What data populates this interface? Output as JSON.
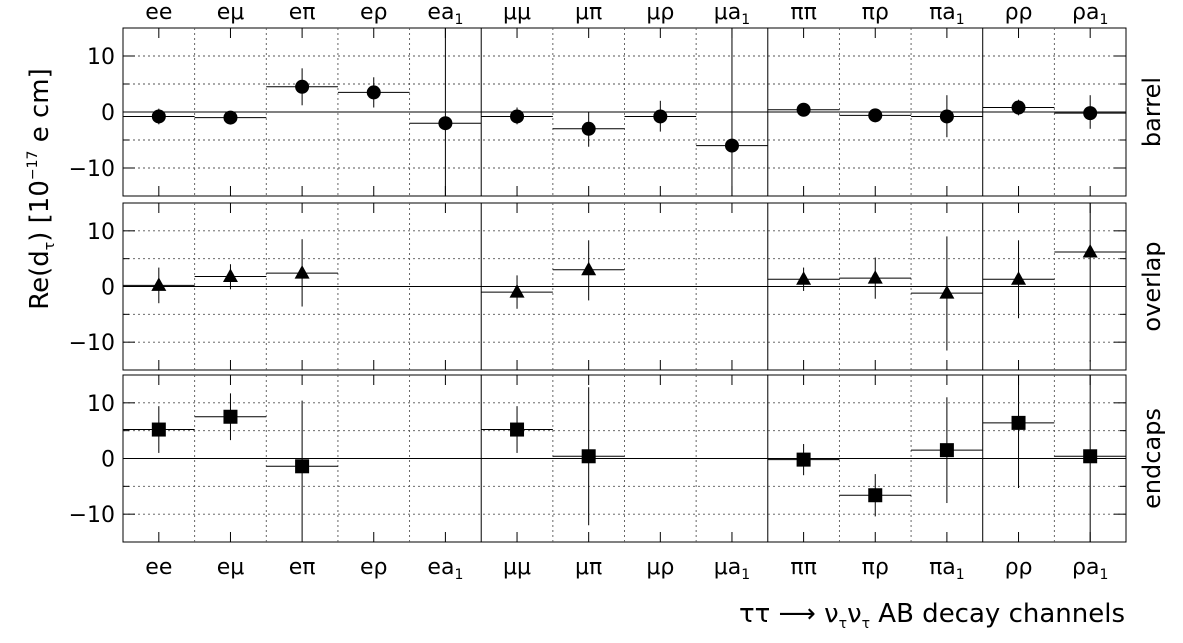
{
  "chart_data": {
    "type": "scatter",
    "ylabel_main": "Re(d",
    "ylabel_sub": "τ",
    "ylabel_units": ")  [10",
    "ylabel_exp": "−17",
    "ylabel_tail": " e cm]",
    "xtitle_main": "ττ ⟶ ν",
    "xtitle_sub1": "τ",
    "xtitle_mid": "ν",
    "xtitle_sub2": "τ",
    "xtitle_tail": " AB  decay channels",
    "ylim": [
      -15,
      15
    ],
    "yticks": [
      -10,
      0,
      10
    ],
    "ytick_labels": [
      "−10",
      "0",
      "10"
    ],
    "minor_step": 5,
    "group_boundaries_after": [
      4,
      8,
      11
    ],
    "categories": [
      {
        "main": "ee",
        "sub": ""
      },
      {
        "main": "eμ",
        "sub": ""
      },
      {
        "main": "eπ",
        "sub": ""
      },
      {
        "main": "eρ",
        "sub": ""
      },
      {
        "main": "ea",
        "sub": "1"
      },
      {
        "main": "μμ",
        "sub": ""
      },
      {
        "main": "μπ",
        "sub": ""
      },
      {
        "main": "μρ",
        "sub": ""
      },
      {
        "main": "μa",
        "sub": "1"
      },
      {
        "main": "ππ",
        "sub": ""
      },
      {
        "main": "πρ",
        "sub": ""
      },
      {
        "main": "πa",
        "sub": "1"
      },
      {
        "main": "ρρ",
        "sub": ""
      },
      {
        "main": "ρa",
        "sub": "1"
      }
    ],
    "panels": [
      {
        "name": "barrel",
        "marker": "circle",
        "points": [
          {
            "i": 0,
            "y": -0.8,
            "lo": -2.2,
            "hi": 0.6
          },
          {
            "i": 1,
            "y": -1.0,
            "lo": -2.0,
            "hi": 0.0
          },
          {
            "i": 2,
            "y": 4.5,
            "lo": 1.2,
            "hi": 7.8
          },
          {
            "i": 3,
            "y": 3.5,
            "lo": 0.8,
            "hi": 6.2
          },
          {
            "i": 4,
            "y": -2.0,
            "lo": -15.0,
            "hi": 15.0
          },
          {
            "i": 5,
            "y": -0.8,
            "lo": -2.2,
            "hi": 0.8
          },
          {
            "i": 6,
            "y": -3.0,
            "lo": -6.2,
            "hi": 0.0
          },
          {
            "i": 7,
            "y": -0.8,
            "lo": -3.5,
            "hi": 2.0
          },
          {
            "i": 8,
            "y": -6.0,
            "lo": -15.0,
            "hi": 15.0
          },
          {
            "i": 9,
            "y": 0.4,
            "lo": -0.8,
            "hi": 1.6
          },
          {
            "i": 10,
            "y": -0.6,
            "lo": -1.8,
            "hi": 0.6
          },
          {
            "i": 11,
            "y": -0.8,
            "lo": -4.5,
            "hi": 3.0
          },
          {
            "i": 12,
            "y": 0.8,
            "lo": -0.6,
            "hi": 2.2
          },
          {
            "i": 13,
            "y": -0.2,
            "lo": -3.0,
            "hi": 3.0
          }
        ]
      },
      {
        "name": "overlap",
        "marker": "triangle",
        "points": [
          {
            "i": 0,
            "y": 0.2,
            "lo": -3.0,
            "hi": 3.4
          },
          {
            "i": 1,
            "y": 1.8,
            "lo": -0.5,
            "hi": 4.0
          },
          {
            "i": 2,
            "y": 2.4,
            "lo": -3.6,
            "hi": 8.5
          },
          {
            "i": 5,
            "y": -1.0,
            "lo": -4.0,
            "hi": 2.0
          },
          {
            "i": 6,
            "y": 3.0,
            "lo": -2.5,
            "hi": 8.3
          },
          {
            "i": 9,
            "y": 1.3,
            "lo": -0.8,
            "hi": 3.4
          },
          {
            "i": 10,
            "y": 1.5,
            "lo": -2.2,
            "hi": 5.2
          },
          {
            "i": 11,
            "y": -1.2,
            "lo": -11.5,
            "hi": 9.0
          },
          {
            "i": 12,
            "y": 1.3,
            "lo": -5.7,
            "hi": 8.3
          },
          {
            "i": 13,
            "y": 6.2,
            "lo": -13.5,
            "hi": 15.0
          }
        ]
      },
      {
        "name": "endcaps",
        "marker": "square",
        "points": [
          {
            "i": 0,
            "y": 5.2,
            "lo": 1.0,
            "hi": 9.4
          },
          {
            "i": 1,
            "y": 7.5,
            "lo": 3.3,
            "hi": 11.7
          },
          {
            "i": 2,
            "y": -1.4,
            "lo": -13.2,
            "hi": 10.4
          },
          {
            "i": 5,
            "y": 5.2,
            "lo": 1.0,
            "hi": 9.4
          },
          {
            "i": 6,
            "y": 0.4,
            "lo": -12.0,
            "hi": 12.8
          },
          {
            "i": 9,
            "y": -0.2,
            "lo": -3.0,
            "hi": 2.6
          },
          {
            "i": 10,
            "y": -6.6,
            "lo": -10.4,
            "hi": -2.8
          },
          {
            "i": 11,
            "y": 1.5,
            "lo": -8.0,
            "hi": 11.0
          },
          {
            "i": 12,
            "y": 6.4,
            "lo": -5.3,
            "hi": 15.0
          },
          {
            "i": 13,
            "y": 0.4,
            "lo": -15.0,
            "hi": 15.0
          }
        ]
      }
    ]
  }
}
